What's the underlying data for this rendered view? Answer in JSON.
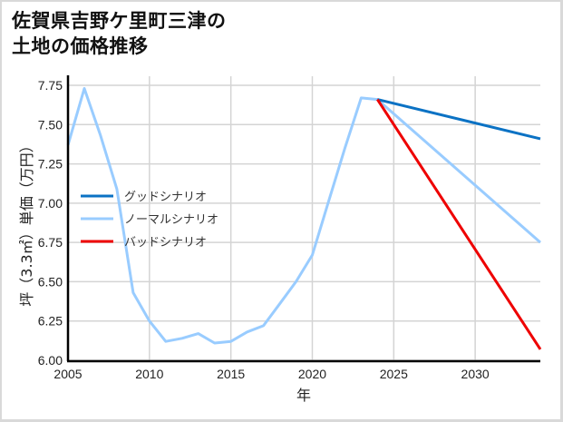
{
  "title": {
    "line1": "佐賀県吉野ケ里町三津の",
    "line2": "土地の価格推移"
  },
  "colors": {
    "good": "#0b72c4",
    "normal": "#99ccff",
    "bad": "#ee0000",
    "grid": "#d4d4d4",
    "axis": "#000000"
  },
  "chart_data": {
    "type": "line",
    "title": "佐賀県吉野ケ里町三津の土地の価格推移",
    "xlabel": "年",
    "ylabel": "坪（3.3㎡）単価（万円）",
    "xlim": [
      2005,
      2034
    ],
    "ylim": [
      6.0,
      7.75
    ],
    "x_ticks": [
      "2005",
      "2010",
      "2015",
      "2020",
      "2025",
      "2030"
    ],
    "y_ticks": [
      "6.00",
      "6.25",
      "6.50",
      "6.75",
      "7.00",
      "7.25",
      "7.50",
      "7.75"
    ],
    "grid": true,
    "legend_position": "center-left inside plot",
    "series": [
      {
        "name": "グッドシナリオ",
        "color": "#0b72c4",
        "x": [
          2024,
          2034
        ],
        "values": [
          7.66,
          7.41
        ]
      },
      {
        "name": "ノーマルシナリオ",
        "color": "#99ccff",
        "x": [
          2005,
          2006,
          2007,
          2008,
          2009,
          2010,
          2011,
          2012,
          2013,
          2014,
          2015,
          2016,
          2017,
          2018,
          2019,
          2020,
          2021,
          2022,
          2023,
          2024,
          2034
        ],
        "values": [
          7.37,
          7.73,
          7.43,
          7.09,
          6.43,
          6.25,
          6.12,
          6.14,
          6.17,
          6.11,
          6.12,
          6.18,
          6.22,
          6.36,
          6.5,
          6.67,
          7.01,
          7.35,
          7.67,
          7.66,
          6.75
        ]
      },
      {
        "name": "バッドシナリオ",
        "color": "#ee0000",
        "x": [
          2024,
          2034
        ],
        "values": [
          7.66,
          6.07
        ]
      }
    ]
  }
}
